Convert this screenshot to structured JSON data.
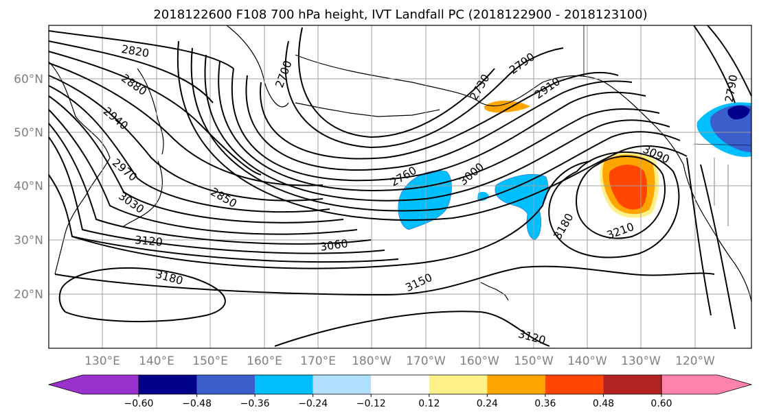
{
  "title": "2018122600 F108 700 hPa height, IVT Landfall PC (2018122900 - 2018123100)",
  "latitude_labels": [
    "60°N",
    "50°N",
    "40°N",
    "30°N",
    "20°N"
  ],
  "longitude_labels": [
    "130°E",
    "140°E",
    "150°E",
    "160°E",
    "170°E",
    "180°W",
    "170°W",
    "160°W",
    "150°W",
    "140°W",
    "130°W",
    "120°W"
  ],
  "contour_labels": [
    "2820",
    "2880",
    "2940",
    "2970",
    "3030",
    "3120",
    "3180",
    "2850",
    "2760",
    "3060",
    "3000",
    "3150",
    "3120",
    "2730",
    "2790",
    "2910",
    "3090",
    "3180",
    "3210",
    "2790",
    "2700"
  ],
  "colorbar": {
    "tick_labels": [
      "−0.60",
      "−0.48",
      "−0.36",
      "−0.24",
      "−0.12",
      "0.12",
      "0.24",
      "0.36",
      "0.48",
      "0.60"
    ],
    "colors": [
      "#9932cc",
      "#00008b",
      "#3a5fcd",
      "#00bfff",
      "#b0e2ff",
      "#ffffff",
      "#fff08a",
      "#ffa500",
      "#ff4500",
      "#b22222",
      "#ff82ab"
    ]
  }
}
